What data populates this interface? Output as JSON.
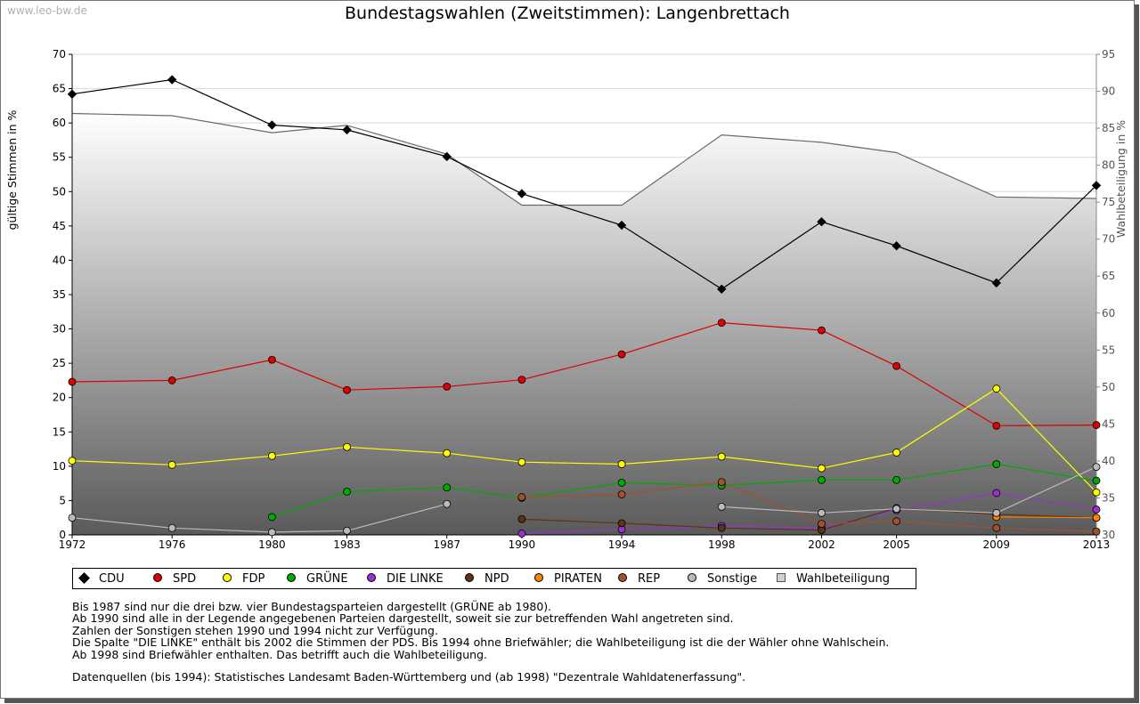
{
  "watermark": "www.leo-bw.de",
  "chart_data": {
    "type": "line",
    "title": "Bundestagswahlen (Zweitstimmen): Langenbrettach",
    "ylabel": "gültige Stimmen in %",
    "y2label": "Wahlbeteiligung in %",
    "ylim": [
      0,
      70
    ],
    "y2lim": [
      30,
      95
    ],
    "yticks": [
      0,
      5,
      10,
      15,
      20,
      25,
      30,
      35,
      40,
      45,
      50,
      55,
      60,
      65,
      70
    ],
    "y2ticks": [
      30,
      35,
      40,
      45,
      50,
      55,
      60,
      65,
      70,
      75,
      80,
      85,
      90,
      95
    ],
    "x": [
      "1972",
      "1976",
      "1980",
      "1983",
      "1987",
      "1990",
      "1994",
      "1998",
      "2002",
      "2005",
      "2009",
      "2013"
    ],
    "xvals": [
      1972,
      1976,
      1980,
      1983,
      1987,
      1990,
      1994,
      1998,
      2002,
      2005,
      2009,
      2013
    ],
    "grid": "horizontal",
    "legend_position": "bottom",
    "series": [
      {
        "name": "CDU",
        "color": "#000000",
        "values": [
          64.2,
          66.3,
          59.7,
          59.0,
          55.1,
          49.7,
          45.1,
          35.8,
          45.6,
          42.1,
          36.7,
          50.9
        ]
      },
      {
        "name": "SPD",
        "color": "#dd0000",
        "values": [
          22.3,
          22.5,
          25.5,
          21.1,
          21.6,
          22.6,
          26.3,
          30.9,
          29.8,
          24.6,
          15.9,
          16.0
        ]
      },
      {
        "name": "FDP",
        "color": "#ffff00",
        "values": [
          10.8,
          10.2,
          11.5,
          12.8,
          11.9,
          10.6,
          10.3,
          11.4,
          9.7,
          12.0,
          21.3,
          6.2
        ]
      },
      {
        "name": "GRÜNE",
        "color": "#00aa00",
        "values": [
          null,
          null,
          2.6,
          6.3,
          6.9,
          5.4,
          7.6,
          7.2,
          8.0,
          8.0,
          10.3,
          7.9
        ]
      },
      {
        "name": "DIE LINKE",
        "color": "#9933cc",
        "values": [
          null,
          null,
          null,
          null,
          null,
          0.2,
          0.8,
          1.3,
          1.0,
          3.6,
          6.1,
          3.7
        ]
      },
      {
        "name": "NPD",
        "color": "#5c3317",
        "values": [
          null,
          null,
          null,
          null,
          null,
          2.3,
          1.7,
          1.0,
          0.7,
          3.9,
          3.0,
          2.5
        ]
      },
      {
        "name": "PIRATEN",
        "color": "#ff8000",
        "values": [
          null,
          null,
          null,
          null,
          null,
          null,
          null,
          null,
          null,
          null,
          2.6,
          2.5
        ]
      },
      {
        "name": "REP",
        "color": "#a0522d",
        "values": [
          null,
          null,
          null,
          null,
          null,
          5.5,
          5.9,
          7.7,
          1.6,
          2.0,
          1.0,
          0.5
        ]
      },
      {
        "name": "Sonstige",
        "color": "#bbbbbb",
        "values": [
          2.5,
          1.0,
          0.4,
          0.6,
          4.5,
          null,
          null,
          4.1,
          3.2,
          3.8,
          3.2,
          9.9
        ]
      }
    ],
    "turnout": {
      "name": "Wahlbeteiligung",
      "values": [
        87.0,
        86.7,
        84.4,
        85.4,
        81.5,
        74.6,
        74.6,
        84.1,
        83.1,
        81.7,
        75.7,
        75.5
      ]
    }
  },
  "legend_items": [
    {
      "name": "CDU",
      "color": "#000000",
      "shape": "diamond"
    },
    {
      "name": "SPD",
      "color": "#dd0000",
      "shape": "dot"
    },
    {
      "name": "FDP",
      "color": "#ffff00",
      "shape": "dot"
    },
    {
      "name": "GRÜNE",
      "color": "#00aa00",
      "shape": "dot"
    },
    {
      "name": "DIE LINKE",
      "color": "#9933cc",
      "shape": "dot"
    },
    {
      "name": "NPD",
      "color": "#5c3317",
      "shape": "dot"
    },
    {
      "name": "PIRATEN",
      "color": "#ff8000",
      "shape": "dot"
    },
    {
      "name": "REP",
      "color": "#a0522d",
      "shape": "dot"
    },
    {
      "name": "Sonstige",
      "color": "#bbbbbb",
      "shape": "dot"
    },
    {
      "name": "Wahlbeteiligung",
      "color": "#d0d0d0",
      "shape": "square"
    }
  ],
  "notes": [
    "Bis 1987 sind nur die drei bzw. vier Bundestagsparteien dargestellt (GRÜNE ab 1980).",
    "Ab 1990 sind alle in der Legende angegebenen Parteien dargestellt, soweit sie zur betreffenden Wahl angetreten sind.",
    "Zahlen der Sonstigen stehen 1990 und 1994 nicht zur Verfügung.",
    "Die Spalte \"DIE LINKE\" enthält bis 2002 die Stimmen der PDS. Bis 1994 ohne Briefwähler; die Wahlbeteiligung ist die der Wähler ohne Wahlschein.",
    "Ab 1998 sind Briefwähler enthalten. Das betrifft auch die Wahlbeteiligung."
  ],
  "source": "Datenquellen (bis 1994): Statistisches Landesamt Baden-Württemberg und (ab 1998) \"Dezentrale Wahldatenerfassung\"."
}
